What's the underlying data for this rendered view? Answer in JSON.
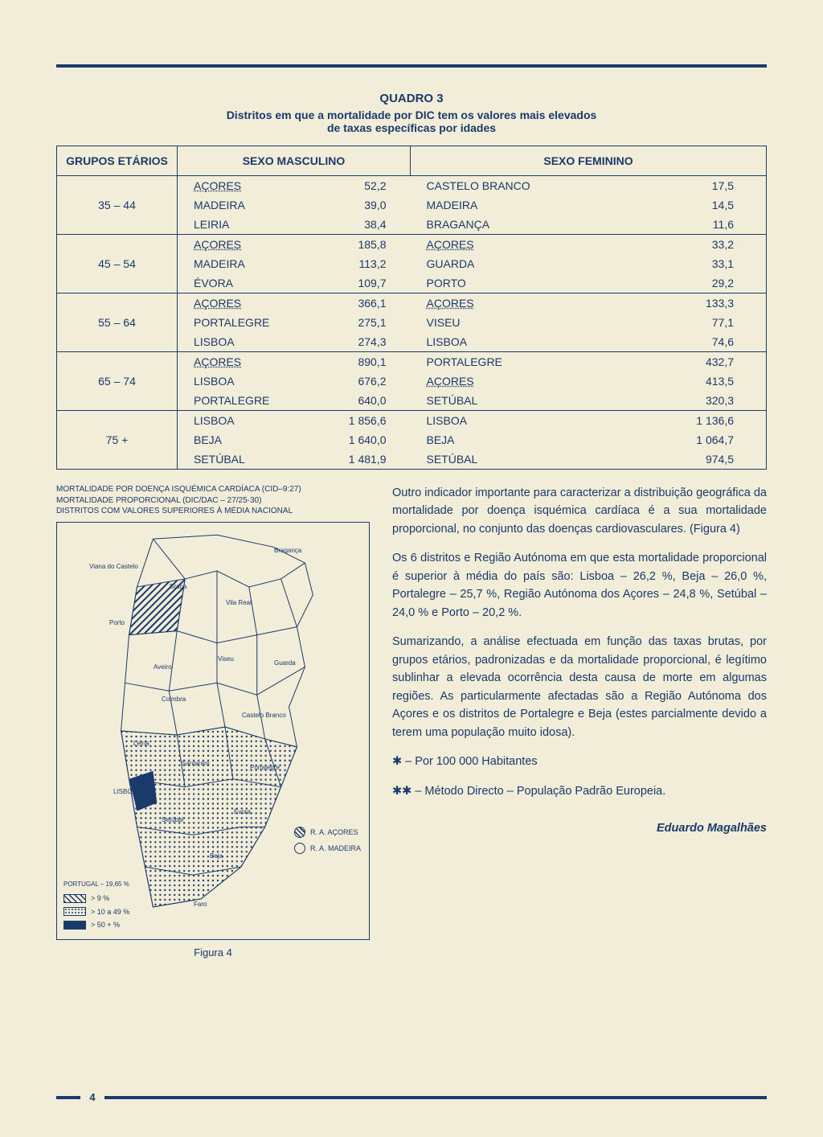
{
  "colors": {
    "ink": "#1a3a6b",
    "paper": "#f2edd8"
  },
  "quadro": {
    "title": "QUADRO 3",
    "subtitle1": "Distritos em que a mortalidade por DIC tem os valores mais elevados",
    "subtitle2": "de taxas específicas por idades",
    "headers": {
      "grupos": "GRUPOS ETÁRIOS",
      "masc": "SEXO MASCULINO",
      "fem": "SEXO FEMININO"
    },
    "groups": [
      {
        "range": "35 – 44",
        "masc": [
          {
            "d": "AÇORES",
            "v": "52,2",
            "u": true
          },
          {
            "d": "MADEIRA",
            "v": "39,0"
          },
          {
            "d": "LEIRIA",
            "v": "38,4"
          }
        ],
        "fem": [
          {
            "d": "CASTELO BRANCO",
            "v": "17,5"
          },
          {
            "d": "MADEIRA",
            "v": "14,5"
          },
          {
            "d": "BRAGANÇA",
            "v": "11,6"
          }
        ]
      },
      {
        "range": "45 – 54",
        "masc": [
          {
            "d": "AÇORES",
            "v": "185,8",
            "u": true
          },
          {
            "d": "MADEIRA",
            "v": "113,2"
          },
          {
            "d": "ÉVORA",
            "v": "109,7"
          }
        ],
        "fem": [
          {
            "d": "AÇORES",
            "v": "33,2",
            "u": true
          },
          {
            "d": "GUARDA",
            "v": "33,1"
          },
          {
            "d": "PORTO",
            "v": "29,2"
          }
        ]
      },
      {
        "range": "55 – 64",
        "masc": [
          {
            "d": "AÇORES",
            "v": "366,1",
            "u": true
          },
          {
            "d": "PORTALEGRE",
            "v": "275,1"
          },
          {
            "d": "LISBOA",
            "v": "274,3"
          }
        ],
        "fem": [
          {
            "d": "AÇORES",
            "v": "133,3",
            "u": true
          },
          {
            "d": "VISEU",
            "v": "77,1"
          },
          {
            "d": "LISBOA",
            "v": "74,6"
          }
        ]
      },
      {
        "range": "65 – 74",
        "masc": [
          {
            "d": "AÇORES",
            "v": "890,1",
            "u": true
          },
          {
            "d": "LISBOA",
            "v": "676,2"
          },
          {
            "d": "PORTALEGRE",
            "v": "640,0"
          }
        ],
        "fem": [
          {
            "d": "PORTALEGRE",
            "v": "432,7"
          },
          {
            "d": "AÇORES",
            "v": "413,5",
            "u": true
          },
          {
            "d": "SETÚBAL",
            "v": "320,3"
          }
        ]
      },
      {
        "range": "75 +",
        "masc": [
          {
            "d": "LISBOA",
            "v": "1 856,6"
          },
          {
            "d": "BEJA",
            "v": "1 640,0"
          },
          {
            "d": "SETÚBAL",
            "v": "1 481,9"
          }
        ],
        "fem": [
          {
            "d": "LISBOA",
            "v": "1 136,6"
          },
          {
            "d": "BEJA",
            "v": "1 064,7"
          },
          {
            "d": "SETÚBAL",
            "v": "974,5"
          }
        ]
      }
    ]
  },
  "map": {
    "caption1": "MORTALIDADE POR DOENÇA ISQUÉMICA CARDÍACA (CID–9:27)",
    "caption2": "MORTALIDADE PROPORCIONAL (DIC/DAC – 27/25-30)",
    "caption3": "DISTRITOS COM VALORES SUPERIORES À MÉDIA NACIONAL",
    "legend_title": "PORTUGAL – 19,65 %",
    "legend": [
      {
        "sw": "hatch",
        "label": "> 9 %"
      },
      {
        "sw": "dots",
        "label": "> 10 a 49 %"
      },
      {
        "sw": "solid",
        "label": "> 50 + %"
      }
    ],
    "islands": [
      {
        "fill": true,
        "label": "R. A. AÇORES"
      },
      {
        "fill": false,
        "label": "R. A. MADEIRA"
      }
    ],
    "labels": [
      "Viana do Castelo",
      "Braga",
      "Bragança",
      "Vila Real",
      "Porto",
      "Aveiro",
      "Viseu",
      "Guarda",
      "Coimbra",
      "Castelo Branco",
      "Leiria",
      "Santarém",
      "Portalegre",
      "LISBOA",
      "Setúbal",
      "Évora",
      "Beja",
      "Faro"
    ],
    "figlabel": "Figura 4"
  },
  "text": {
    "p1": "Outro indicador importante para caracterizar a distribuição geográfica da mortalidade por doença isquémica cardíaca é a sua mortalidade proporcional, no conjunto das doenças cardiovasculares. (Figura 4)",
    "p2": "Os 6 distritos e Região Autónoma em que esta mortalidade proporcional é superior à média do país são: Lisboa – 26,2 %, Beja – 26,0 %, Portalegre – 25,7 %, Região Autónoma dos Açores – 24,8 %, Setúbal – 24,0 % e Porto – 20,2 %.",
    "p3": "Sumarizando, a análise efectuada em função das taxas brutas, por grupos etários, padronizadas e da mortalidade proporcional, é legítimo sublinhar a elevada ocorrência desta causa de morte em algumas regiões. As particularmente afectadas são a Região Autónoma dos Açores e os distritos de Portalegre e Beja (estes parcialmente devido a terem uma população muito idosa).",
    "note1": "✱ – Por 100 000 Habitantes",
    "note2": "✱✱ – Método Directo – População Padrão Europeia.",
    "author": "Eduardo Magalhães"
  },
  "page": "4"
}
